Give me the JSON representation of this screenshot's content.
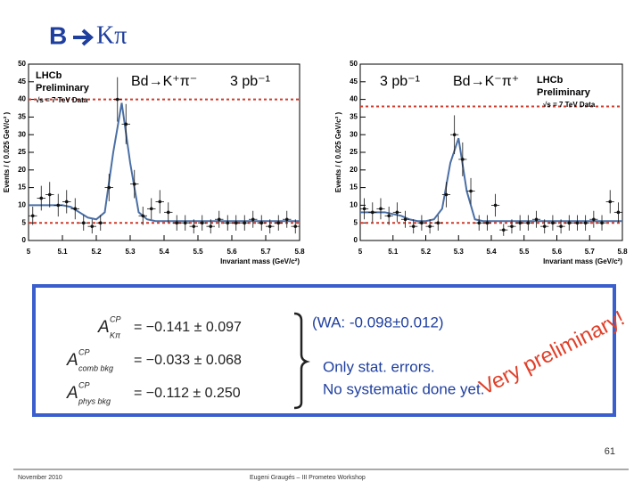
{
  "slide": {
    "title_left": "B",
    "title_right": "Kπ",
    "formulas": [
      {
        "symbol": "A",
        "sup": "CP",
        "sub": "Kπ",
        "value": "= −0.141 ± 0.097"
      },
      {
        "symbol": "A",
        "sup": "CP",
        "sub": "comb bkg",
        "value": "= −0.033 ± 0.068"
      },
      {
        "symbol": "A",
        "sup": "CP",
        "sub": "phys bkg",
        "value": "= −0.112 ± 0.250"
      }
    ],
    "world_average": "(WA: -0.098±0.012)",
    "note_1": "Only stat. errors.",
    "note_2": "No systematic done yet.",
    "watermark": "Very preliminary!",
    "page_number": "61",
    "date": "November 2010",
    "footer": "Eugeni Graugés – III Prometeo Workshop"
  },
  "chart_data": [
    {
      "type": "histogram",
      "x_label": "Invariant mass (GeV/c²)",
      "y_label": "Events / ( 0.025 GeV/c² )",
      "experiment": "LHCb",
      "status": "Preliminary",
      "energy": "√s = 7 TeV Data",
      "luminosity": "3 pb⁻¹",
      "decay": "Bd→K⁺π⁻",
      "bins": [
        5,
        5.025,
        5.05,
        5.075,
        5.1,
        5.125,
        5.15,
        5.175,
        5.2,
        5.225,
        5.25,
        5.275,
        5.3,
        5.325,
        5.35,
        5.375,
        5.4,
        5.425,
        5.45,
        5.475,
        5.5,
        5.525,
        5.55,
        5.575,
        5.6,
        5.625,
        5.65,
        5.675,
        5.7,
        5.725,
        5.75,
        5.775,
        5.8
      ],
      "values": [
        7,
        12,
        13,
        10,
        11,
        9,
        5,
        4,
        5,
        15,
        40,
        33,
        16,
        7,
        9,
        11,
        8,
        5,
        5,
        4,
        5,
        4,
        6,
        5,
        5,
        5,
        6,
        5,
        4,
        5,
        6,
        4
      ],
      "errors": [
        2.6,
        3.5,
        3.6,
        3.2,
        3.3,
        3,
        2.2,
        2,
        2.2,
        3.9,
        6.3,
        5.7,
        4,
        2.6,
        3,
        3.3,
        2.8,
        2.2,
        2.2,
        2,
        2.2,
        2,
        2.4,
        2.2,
        2.2,
        2.2,
        2.4,
        2.2,
        2,
        2.2,
        2.4,
        2
      ],
      "fit": [
        10,
        10,
        10,
        10,
        10,
        9.5,
        8,
        6.5,
        6,
        8,
        25,
        39,
        22,
        8,
        6,
        5.5,
        5.5,
        5.5,
        5.5,
        5.5,
        5.5,
        5.5,
        5.5,
        5.5,
        5.5,
        5.5,
        5.5,
        5.5,
        5.5,
        5.5,
        5.5,
        5.5,
        5.5
      ],
      "reference_lines": [
        40,
        5
      ],
      "xlim": [
        5,
        5.8
      ],
      "xticks": [
        5,
        5.1,
        5.2,
        5.3,
        5.4,
        5.5,
        5.6,
        5.7,
        5.8
      ],
      "ylim": [
        0,
        50
      ],
      "yticks": [
        0,
        5,
        10,
        15,
        20,
        25,
        30,
        35,
        40,
        45,
        50
      ],
      "color": "#111111",
      "fit_color": "#4a6fa5",
      "reference_color": "#d03a2a"
    },
    {
      "type": "histogram",
      "x_label": "Invariant mass (GeV/c²)",
      "y_label": "Events / ( 0.025 GeV/c² )",
      "experiment": "LHCb",
      "status": "Preliminary",
      "energy": "√s = 7 TeV Data",
      "luminosity": "3 pb⁻¹",
      "decay": "Bd→K⁻π⁺",
      "bins": [
        5,
        5.025,
        5.05,
        5.075,
        5.1,
        5.125,
        5.15,
        5.175,
        5.2,
        5.225,
        5.25,
        5.275,
        5.3,
        5.325,
        5.35,
        5.375,
        5.4,
        5.425,
        5.45,
        5.475,
        5.5,
        5.525,
        5.55,
        5.575,
        5.6,
        5.625,
        5.65,
        5.675,
        5.7,
        5.725,
        5.75,
        5.775,
        5.8
      ],
      "values": [
        9,
        8,
        9,
        7,
        8,
        6,
        4,
        5,
        4,
        5,
        13,
        30,
        23,
        14,
        5,
        5,
        10,
        3,
        4,
        5,
        5,
        6,
        4,
        5,
        4,
        5,
        5,
        5,
        6,
        5,
        11,
        8
      ],
      "errors": [
        3,
        2.8,
        3,
        2.6,
        2.8,
        2.4,
        2,
        2.2,
        2,
        2.2,
        3.6,
        5.5,
        4.8,
        3.7,
        2.2,
        2.2,
        3.2,
        1.7,
        2,
        2.2,
        2.2,
        2.4,
        2,
        2.2,
        2,
        2.2,
        2.2,
        2.2,
        2.4,
        2.2,
        3.3,
        2.8
      ],
      "fit": [
        8,
        8,
        8,
        8,
        7.5,
        7,
        6,
        5.5,
        5.5,
        6,
        9,
        22,
        29,
        14,
        6,
        5.5,
        5.5,
        5.5,
        5.5,
        5.5,
        5.5,
        5.5,
        5.5,
        5.5,
        5.5,
        5.5,
        5.5,
        5.5,
        5.5,
        5.5,
        5.5,
        5.5,
        5.5
      ],
      "reference_lines": [
        38,
        5
      ],
      "xlim": [
        5,
        5.8
      ],
      "xticks": [
        5,
        5.1,
        5.2,
        5.3,
        5.4,
        5.5,
        5.6,
        5.7,
        5.8
      ],
      "ylim": [
        0,
        50
      ],
      "yticks": [
        0,
        5,
        10,
        15,
        20,
        25,
        30,
        35,
        40,
        45,
        50
      ],
      "color": "#111111",
      "fit_color": "#4a6fa5",
      "reference_color": "#d03a2a"
    }
  ]
}
